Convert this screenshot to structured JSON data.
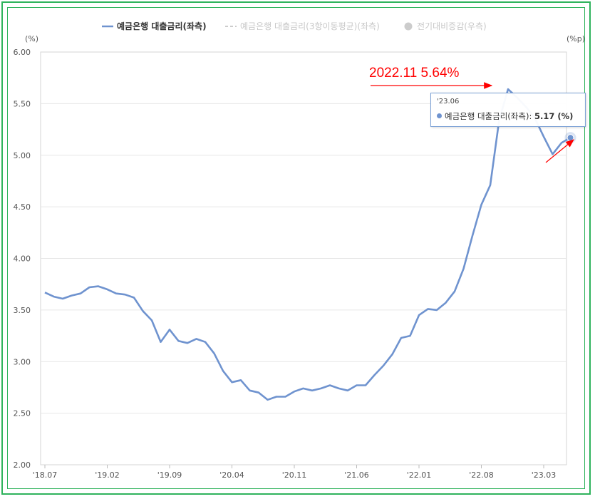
{
  "legend": {
    "items": [
      {
        "label": "예금은행 대출금리(좌측)",
        "color": "#6f93cf",
        "active": true
      },
      {
        "label": "예금은행 대출금리(3항이동평균)(좌측)",
        "color": "#cccccc",
        "active": false
      },
      {
        "label": "전기대비증감(우측)",
        "color": "#cccccc",
        "active": false
      }
    ]
  },
  "axis": {
    "left_unit": "(%)",
    "right_unit": "(%p)"
  },
  "tooltip": {
    "date": "'23.06",
    "series_label": "예금은행 대출금리(좌측)",
    "value_text": "5.17 (%)"
  },
  "annotation": {
    "text": "2022.11  5.64%",
    "color": "#ff0000"
  },
  "chart_data": {
    "type": "line",
    "title": "",
    "xlabel": "",
    "ylabel": "",
    "ylim": [
      2.0,
      6.0
    ],
    "yticks": [
      "6.00",
      "5.50",
      "5.00",
      "4.50",
      "4.00",
      "3.50",
      "3.00",
      "2.50",
      "2.00"
    ],
    "xticks": [
      "'18.07",
      "'19.02",
      "'19.09",
      "'20.04",
      "'20.11",
      "'21.06",
      "'22.01",
      "'22.08",
      "'23.03"
    ],
    "x_start": "2018-07",
    "grid": true,
    "series": [
      {
        "name": "예금은행 대출금리(좌측)",
        "color": "#6f93cf",
        "values": [
          3.67,
          3.63,
          3.61,
          3.64,
          3.66,
          3.72,
          3.73,
          3.7,
          3.66,
          3.65,
          3.62,
          3.49,
          3.4,
          3.19,
          3.31,
          3.2,
          3.18,
          3.22,
          3.19,
          3.08,
          2.91,
          2.8,
          2.82,
          2.72,
          2.7,
          2.63,
          2.66,
          2.66,
          2.71,
          2.74,
          2.72,
          2.74,
          2.77,
          2.74,
          2.72,
          2.77,
          2.77,
          2.87,
          2.96,
          3.07,
          3.23,
          3.25,
          3.45,
          3.51,
          3.5,
          3.57,
          3.68,
          3.9,
          4.22,
          4.52,
          4.71,
          5.34,
          5.64,
          5.56,
          5.47,
          5.36,
          5.18,
          5.01,
          5.12,
          5.17
        ]
      }
    ]
  }
}
